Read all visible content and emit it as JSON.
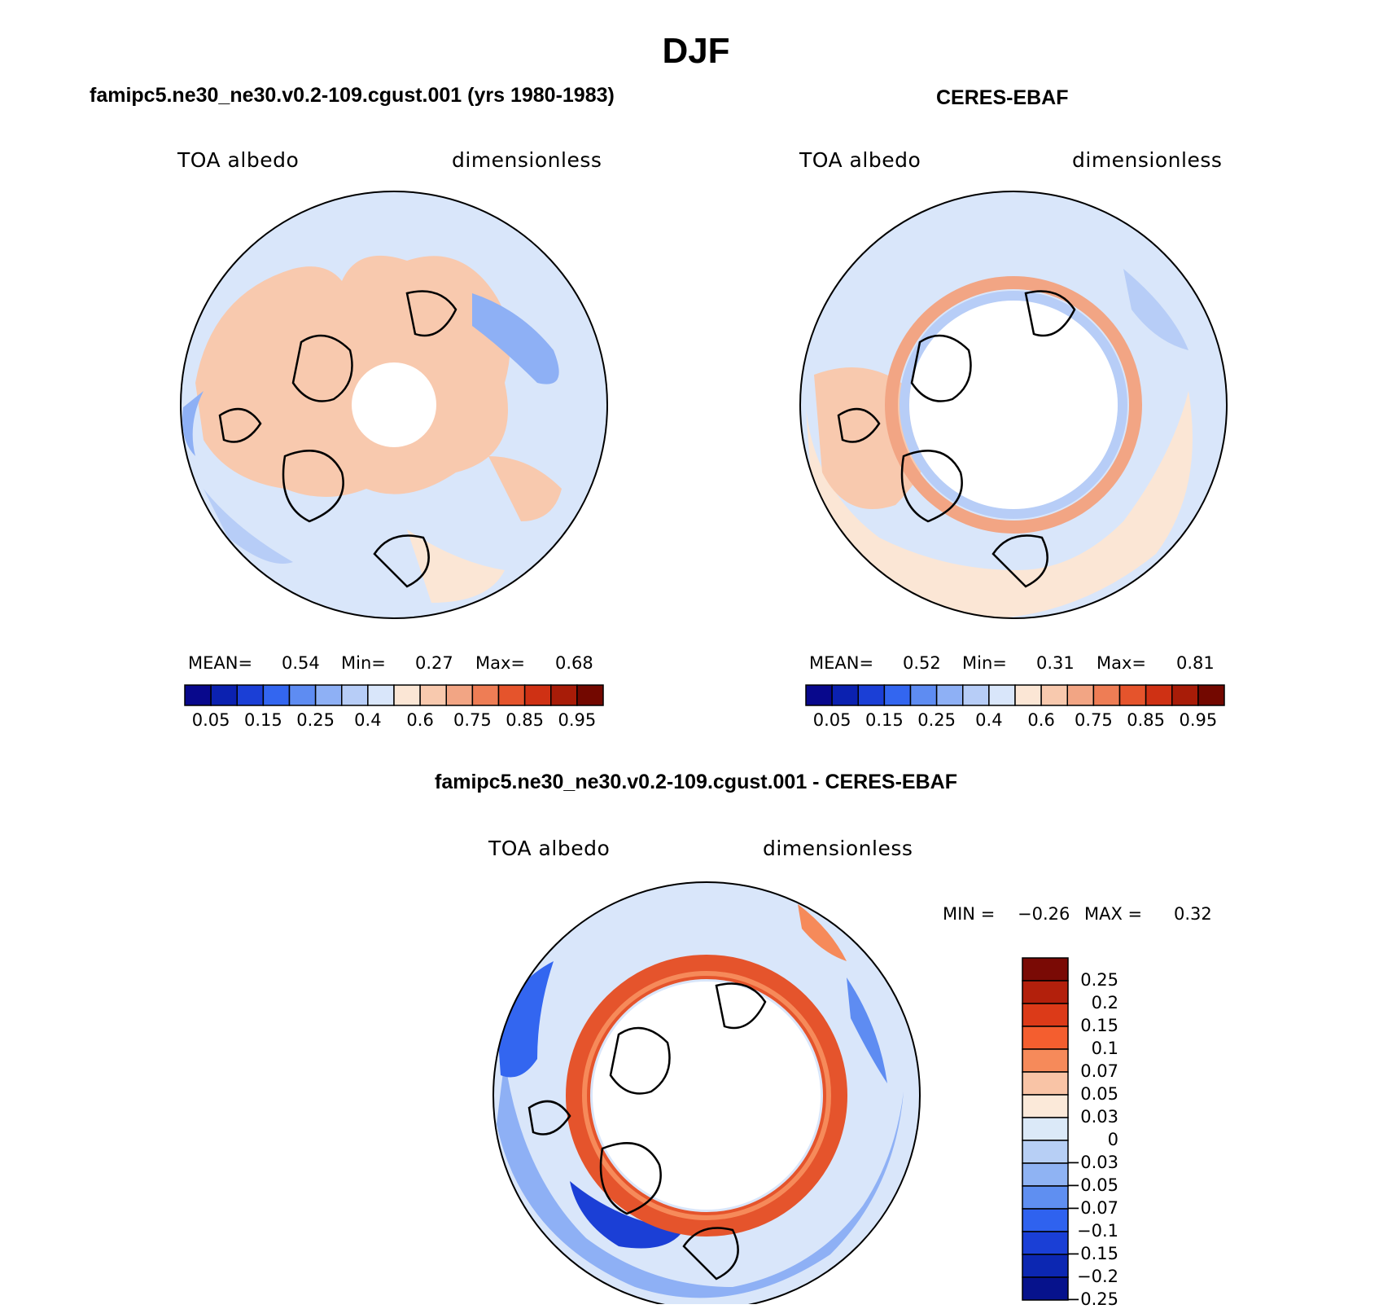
{
  "figure": {
    "title": "DJF",
    "footer_title": "famipc5.ne30_ne30.v0.2-109.cgust.001 - CERES-EBAF"
  },
  "panels": [
    {
      "title": "famipc5.ne30_ne30.v0.2-109.cgust.001 (yrs 1980-1983)",
      "variable": "TOA albedo",
      "units": "dimensionless",
      "mean_label": "MEAN=",
      "mean": "0.54",
      "min_label": "Min=",
      "min": "0.27",
      "max_label": "Max=",
      "max": "0.68"
    },
    {
      "title": "CERES-EBAF",
      "variable": "TOA albedo",
      "units": "dimensionless",
      "mean_label": "MEAN=",
      "mean": "0.52",
      "min_label": "Min=",
      "min": "0.31",
      "max_label": "Max=",
      "max": "0.81"
    }
  ],
  "diff_panel": {
    "variable": "TOA albedo",
    "units": "dimensionless",
    "min_label": "MIN =",
    "min": "−0.26",
    "max_label": "MAX =",
    "max": "0.32"
  },
  "colorbar_abs": {
    "colors": [
      "#08088c",
      "#0b21b0",
      "#1b3fd6",
      "#3366f0",
      "#5e8cf2",
      "#8eb0f5",
      "#b7cdf7",
      "#d9e6fa",
      "#fbe6d5",
      "#f8c9ae",
      "#f2a584",
      "#ee7d55",
      "#e5542c",
      "#cf3114",
      "#a81c08",
      "#730800"
    ],
    "tick_labels": [
      "0.05",
      "0.15",
      "0.25",
      "0.4",
      "0.6",
      "0.75",
      "0.85",
      "0.95"
    ]
  },
  "colorbar_diff": {
    "colors": [
      "#7a0a05",
      "#b3200c",
      "#dc3a18",
      "#f45e2f",
      "#f68a5a",
      "#f9c4a6",
      "#fbe9d9",
      "#dbe9f8",
      "#b7cff5",
      "#8fb3f3",
      "#5f8ff1",
      "#2f62ef",
      "#1a3fd6",
      "#0c27b2",
      "#06128c"
    ],
    "tick_labels": [
      "0.25",
      "0.2",
      "0.15",
      "0.1",
      "0.07",
      "0.05",
      "0.03",
      "0",
      "−0.03",
      "−0.05",
      "−0.07",
      "−0.1",
      "−0.15",
      "−0.2",
      "−0.25"
    ]
  },
  "map_colors": {
    "ocean_low": "#d9e6fa",
    "ocean_mid": "#b7cdf7",
    "ocean_blue": "#8eb0f5",
    "land_warm": "#f8c9ae",
    "land_pale": "#fbe6d5",
    "ring_red": "#e5542c",
    "ring_light": "#f2a584",
    "diff_blue": "#3366f0",
    "diff_deep": "#1b3fd6"
  }
}
